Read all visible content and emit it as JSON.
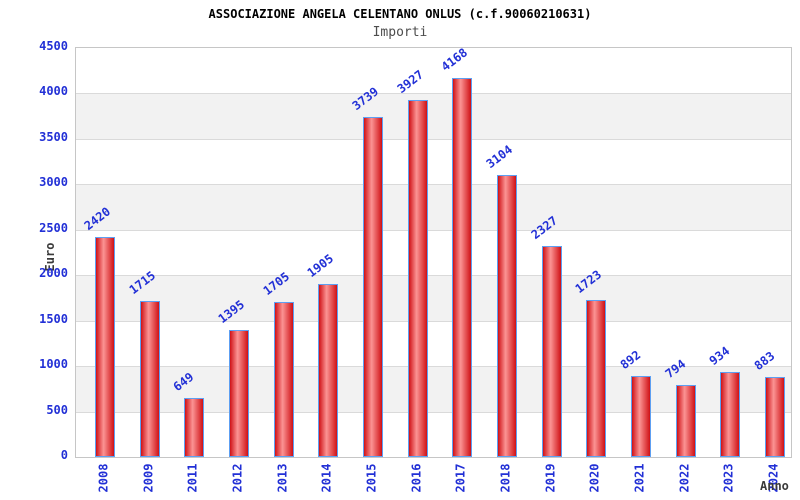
{
  "header": {
    "title": "ASSOCIAZIONE ANGELA CELENTANO ONLUS (c.f.90060210631)",
    "subtitle": "Importi"
  },
  "chart_data": {
    "type": "bar",
    "title": "ASSOCIAZIONE ANGELA CELENTANO ONLUS (c.f.90060210631)",
    "subtitle": "Importi",
    "categories": [
      "2008",
      "2009",
      "2011",
      "2012",
      "2013",
      "2014",
      "2015",
      "2016",
      "2017",
      "2018",
      "2019",
      "2020",
      "2021",
      "2022",
      "2023",
      "2024"
    ],
    "values": [
      2420,
      1715,
      649,
      1395,
      1705,
      1905,
      3739,
      3927,
      4168,
      3104,
      2327,
      1723,
      892,
      794,
      934,
      883
    ],
    "xlabel": "Anno",
    "ylabel": "Euro",
    "ylim": [
      0,
      4500
    ],
    "ytick_step": 500,
    "yticks": [
      0,
      500,
      1000,
      1500,
      2000,
      2500,
      3000,
      3500,
      4000,
      4500
    ],
    "grid": "horizontal gridlines with alternating white/gray 500-unit bands",
    "legend_position": "none",
    "bar_labels_rotation_deg": -37,
    "xtick_rotation_deg": -90,
    "colors": {
      "bar_edge": "#cf1116",
      "bar_center": "#fb9494",
      "bar_border": "#5d9ff2",
      "label_blue": "#2230d6",
      "band_gray": "#f2f2f2",
      "band_white": "#ffffff",
      "grid_line": "#dadada",
      "plot_border": "#c6c6c6",
      "title_color": "#000000",
      "subtitle_color": "#4d4d4d",
      "axis_title_color": "#3a3a3a"
    }
  }
}
